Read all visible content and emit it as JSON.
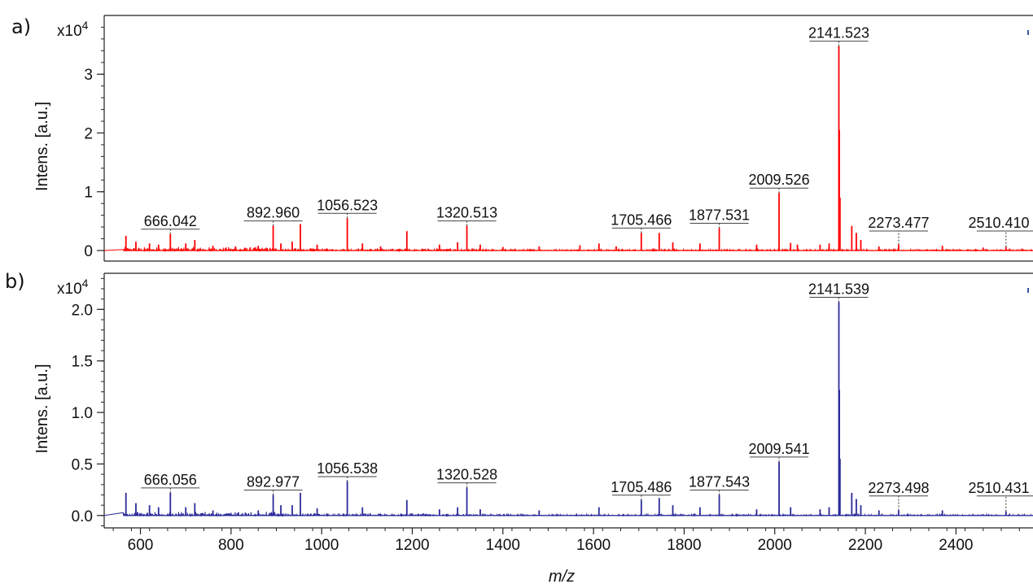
{
  "chart_data": [
    {
      "type": "line",
      "panel_label": "a)",
      "ylabel": "Intens. [a.u.]",
      "y_multiplier": "x10",
      "y_multiplier_exp": "4",
      "xlim": [
        520,
        2570
      ],
      "ylim": [
        -0.18,
        4.0
      ],
      "y_ticks": [
        0,
        1,
        2,
        3
      ],
      "y_tick_labels": [
        "0",
        "1",
        "2",
        "3"
      ],
      "color": "#ff0000",
      "peaks": [
        {
          "x": 568,
          "y": 0.25
        },
        {
          "x": 590,
          "y": 0.15
        },
        {
          "x": 620,
          "y": 0.12
        },
        {
          "x": 640,
          "y": 0.1
        },
        {
          "x": 666.042,
          "y": 0.28,
          "label": "666.042"
        },
        {
          "x": 700,
          "y": 0.12
        },
        {
          "x": 720,
          "y": 0.18
        },
        {
          "x": 760,
          "y": 0.08
        },
        {
          "x": 810,
          "y": 0.07
        },
        {
          "x": 860,
          "y": 0.08
        },
        {
          "x": 892.96,
          "y": 0.42,
          "label": "892.960",
          "dotted": true
        },
        {
          "x": 910,
          "y": 0.12
        },
        {
          "x": 935,
          "y": 0.15
        },
        {
          "x": 953,
          "y": 0.45
        },
        {
          "x": 990,
          "y": 0.1
        },
        {
          "x": 1056.523,
          "y": 0.55,
          "label": "1056.523"
        },
        {
          "x": 1090,
          "y": 0.12
        },
        {
          "x": 1130,
          "y": 0.07
        },
        {
          "x": 1188,
          "y": 0.33
        },
        {
          "x": 1260,
          "y": 0.1
        },
        {
          "x": 1300,
          "y": 0.14
        },
        {
          "x": 1320.513,
          "y": 0.42,
          "label": "1320.513"
        },
        {
          "x": 1350,
          "y": 0.1
        },
        {
          "x": 1400,
          "y": 0.06
        },
        {
          "x": 1480,
          "y": 0.07
        },
        {
          "x": 1570,
          "y": 0.09
        },
        {
          "x": 1612,
          "y": 0.12
        },
        {
          "x": 1650,
          "y": 0.07
        },
        {
          "x": 1705.466,
          "y": 0.3,
          "label": "1705.466",
          "dotted": true
        },
        {
          "x": 1745,
          "y": 0.3
        },
        {
          "x": 1775,
          "y": 0.14
        },
        {
          "x": 1835,
          "y": 0.12
        },
        {
          "x": 1877.531,
          "y": 0.38,
          "label": "1877.531"
        },
        {
          "x": 1960,
          "y": 0.1
        },
        {
          "x": 2009.526,
          "y": 0.98,
          "label": "2009.526"
        },
        {
          "x": 2035,
          "y": 0.13
        },
        {
          "x": 2050,
          "y": 0.1
        },
        {
          "x": 2100,
          "y": 0.1
        },
        {
          "x": 2120,
          "y": 0.12
        },
        {
          "x": 2141.523,
          "y": 3.48,
          "label": "2141.523",
          "dotted": true
        },
        {
          "x": 2142.6,
          "y": 2.05
        },
        {
          "x": 2144,
          "y": 0.9
        },
        {
          "x": 2170,
          "y": 0.42
        },
        {
          "x": 2180,
          "y": 0.3
        },
        {
          "x": 2190,
          "y": 0.18
        },
        {
          "x": 2230,
          "y": 0.07
        },
        {
          "x": 2273.477,
          "y": 0.1,
          "label": "2273.477"
        },
        {
          "x": 2370,
          "y": 0.08
        },
        {
          "x": 2460,
          "y": 0.05
        },
        {
          "x": 2510.41,
          "y": 0.06,
          "label": "2510.410"
        }
      ]
    },
    {
      "type": "line",
      "panel_label": "b)",
      "ylabel": "Intens. [a.u.]",
      "xlabel": "m/z",
      "y_multiplier": "x10",
      "y_multiplier_exp": "4",
      "xlim": [
        520,
        2570
      ],
      "ylim": [
        -0.12,
        2.35
      ],
      "y_ticks": [
        0.0,
        0.5,
        1.0,
        1.5,
        2.0
      ],
      "y_tick_labels": [
        "0.0",
        "0.5",
        "1.0",
        "1.5",
        "2.0"
      ],
      "x_ticks": [
        600,
        800,
        1000,
        1200,
        1400,
        1600,
        1800,
        2000,
        2200,
        2400
      ],
      "x_tick_labels": [
        "600",
        "800",
        "1000",
        "1200",
        "1400",
        "1600",
        "1800",
        "2000",
        "2200",
        "2400"
      ],
      "color": "#2b2b9a",
      "peaks": [
        {
          "x": 568,
          "y": 0.22
        },
        {
          "x": 590,
          "y": 0.12
        },
        {
          "x": 620,
          "y": 0.1
        },
        {
          "x": 640,
          "y": 0.08
        },
        {
          "x": 666.056,
          "y": 0.22,
          "label": "666.056"
        },
        {
          "x": 700,
          "y": 0.08
        },
        {
          "x": 720,
          "y": 0.12
        },
        {
          "x": 760,
          "y": 0.05
        },
        {
          "x": 860,
          "y": 0.05
        },
        {
          "x": 892.977,
          "y": 0.2,
          "label": "892.977"
        },
        {
          "x": 910,
          "y": 0.1
        },
        {
          "x": 935,
          "y": 0.1
        },
        {
          "x": 953,
          "y": 0.22
        },
        {
          "x": 990,
          "y": 0.07
        },
        {
          "x": 1056.538,
          "y": 0.33,
          "label": "1056.538"
        },
        {
          "x": 1090,
          "y": 0.08
        },
        {
          "x": 1188,
          "y": 0.15
        },
        {
          "x": 1260,
          "y": 0.06
        },
        {
          "x": 1300,
          "y": 0.08
        },
        {
          "x": 1320.528,
          "y": 0.27,
          "label": "1320.528"
        },
        {
          "x": 1350,
          "y": 0.06
        },
        {
          "x": 1480,
          "y": 0.05
        },
        {
          "x": 1612,
          "y": 0.08
        },
        {
          "x": 1705.486,
          "y": 0.15,
          "label": "1705.486",
          "dotted": true
        },
        {
          "x": 1745,
          "y": 0.17
        },
        {
          "x": 1775,
          "y": 0.1
        },
        {
          "x": 1835,
          "y": 0.08
        },
        {
          "x": 1877.543,
          "y": 0.2,
          "label": "1877.543"
        },
        {
          "x": 1960,
          "y": 0.06
        },
        {
          "x": 2009.541,
          "y": 0.52,
          "label": "2009.541"
        },
        {
          "x": 2035,
          "y": 0.08
        },
        {
          "x": 2100,
          "y": 0.06
        },
        {
          "x": 2120,
          "y": 0.08
        },
        {
          "x": 2141.539,
          "y": 2.07,
          "label": "2141.539",
          "dotted": true
        },
        {
          "x": 2142.6,
          "y": 1.22
        },
        {
          "x": 2144,
          "y": 0.55
        },
        {
          "x": 2170,
          "y": 0.22
        },
        {
          "x": 2180,
          "y": 0.16
        },
        {
          "x": 2190,
          "y": 0.1
        },
        {
          "x": 2230,
          "y": 0.05
        },
        {
          "x": 2273.498,
          "y": 0.05,
          "label": "2273.498"
        },
        {
          "x": 2370,
          "y": 0.05
        },
        {
          "x": 2510.431,
          "y": 0.04,
          "label": "2510.431"
        }
      ]
    }
  ]
}
